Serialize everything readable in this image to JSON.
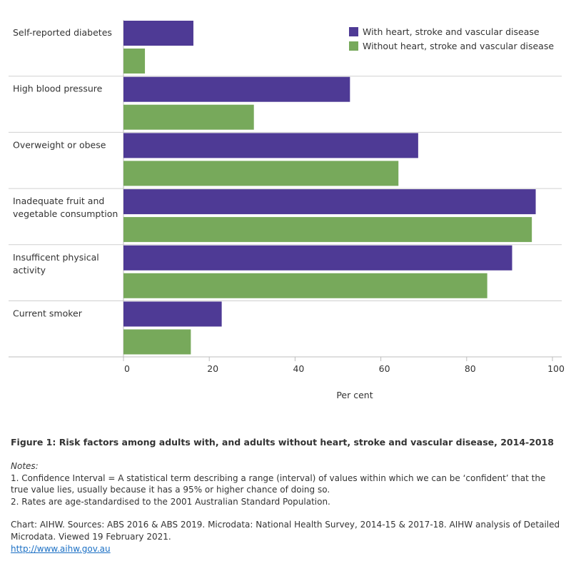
{
  "chart_data": {
    "type": "bar",
    "orientation": "horizontal",
    "categories": [
      [
        "Self-reported diabetes"
      ],
      [
        "High blood pressure"
      ],
      [
        "Overweight or obese"
      ],
      [
        "Inadequate fruit and",
        "vegetable consumption"
      ],
      [
        "Insufficent physical",
        "activity"
      ],
      [
        "Current smoker"
      ]
    ],
    "series": [
      {
        "name": "With heart, stroke and vascular disease",
        "color": "#4e3a95",
        "values": [
          16.3,
          52.8,
          68.7,
          96.1,
          90.6,
          22.9
        ]
      },
      {
        "name": "Without heart, stroke and vascular disease",
        "color": "#77a95b",
        "values": [
          5.0,
          30.4,
          64.1,
          95.2,
          84.8,
          15.7
        ]
      }
    ],
    "xlim": [
      0,
      100
    ],
    "xticks": [
      "0",
      "20",
      "40",
      "60",
      "80",
      "100"
    ],
    "xlabel": "Per cent",
    "legend_position": "top-right"
  },
  "caption": "Figure 1: Risk factors among adults with, and adults without heart, stroke and vascular disease, 2014-2018",
  "notes": {
    "heading": "Notes:",
    "items": [
      "1. Confidence Interval = A statistical term describing a range (interval) of values within which we can be ‘confident’ that the true value lies, usually because it has a 95% or higher chance of doing so.",
      "2. Rates are age-standardised to the 2001 Australian Standard Population."
    ]
  },
  "source": {
    "text": "Chart: AIHW.  Sources: ABS 2016 & ABS 2019. Microdata: National Health Survey, 2014-15 & 2017-18. AIHW analysis of Detailed Microdata. Viewed 19 February 2021.",
    "link": "http://www.aihw.gov.au"
  }
}
